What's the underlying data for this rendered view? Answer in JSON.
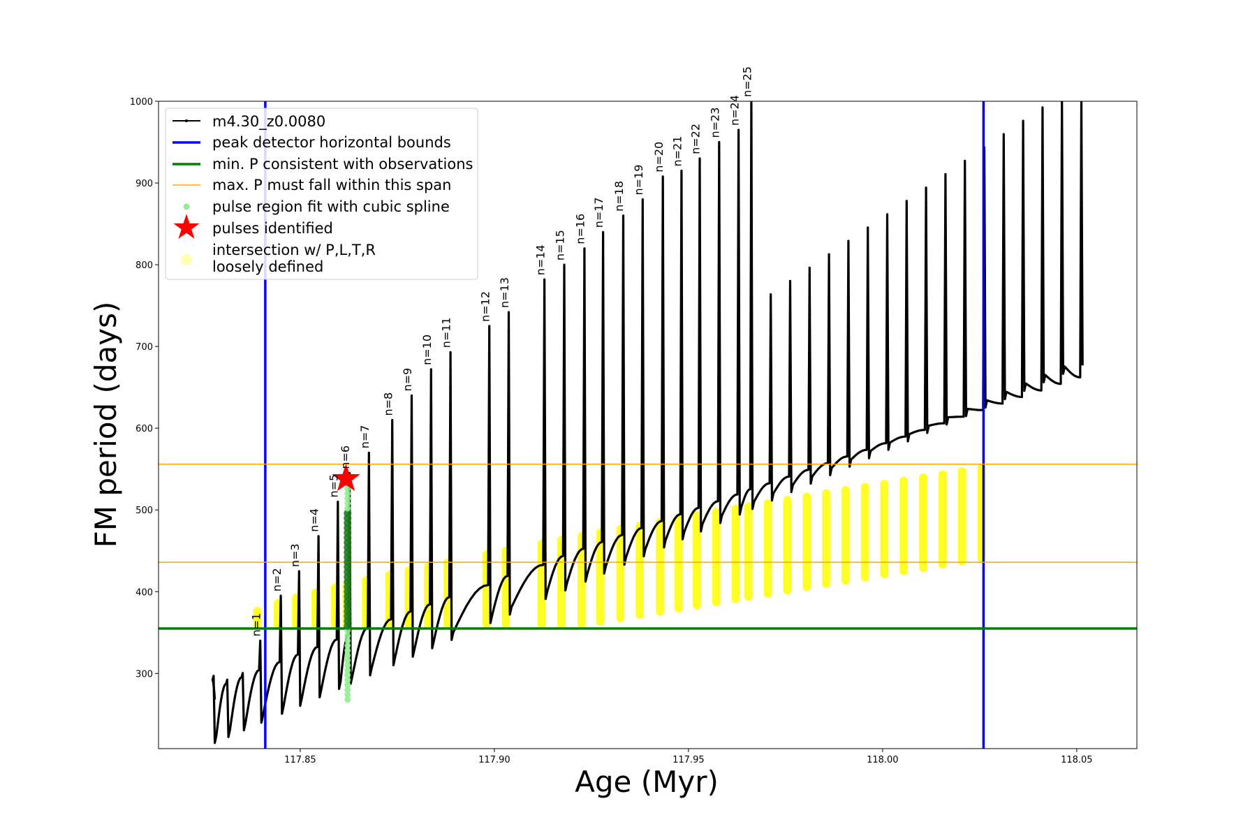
{
  "chart_data": {
    "type": "line",
    "title": "",
    "xlabel": "Age (Myr)",
    "ylabel": "FM period (days)",
    "xlim": [
      117.8135,
      118.0655
    ],
    "ylim": [
      208,
      1000
    ],
    "xticks": [
      117.85,
      117.9,
      117.95,
      118.0,
      118.05
    ],
    "xtick_labels": [
      "117.85",
      "117.90",
      "117.95",
      "118.00",
      "118.05"
    ],
    "yticks": [
      300,
      400,
      500,
      600,
      700,
      800,
      900,
      1000
    ],
    "ytick_labels": [
      "300",
      "400",
      "500",
      "600",
      "700",
      "800",
      "900",
      "1000"
    ],
    "grid": false,
    "legend_position": "top-left",
    "legend": [
      {
        "label": "m4.30_z0.0080",
        "marker": "line-dot",
        "color": "#000000"
      },
      {
        "label": "peak detector horizontal bounds",
        "marker": "line",
        "color": "#0000ff"
      },
      {
        "label": "min. P consistent with observations",
        "marker": "line",
        "color": "#008000"
      },
      {
        "label": "max. P must fall within this span",
        "marker": "thin-line",
        "color": "#ffa500"
      },
      {
        "label": "pulse region fit with cubic spline",
        "marker": "dot",
        "color": "#90ee90"
      },
      {
        "label": "pulses identified",
        "marker": "star",
        "color": "#ff0000"
      },
      {
        "label_lines": [
          "intersection w/ P,L,T,R",
          "loosely defined"
        ],
        "marker": "big-dot",
        "color": "#ffff99"
      }
    ],
    "vertical_lines": {
      "x": [
        117.841,
        118.026
      ],
      "color": "#0000ff"
    },
    "min_period_line": {
      "y": 355,
      "color": "#008000"
    },
    "max_period_span": {
      "y": [
        436,
        556
      ],
      "color": "#ffa500"
    },
    "pulses": {
      "n": [
        1,
        2,
        3,
        4,
        5,
        6,
        7,
        8,
        9,
        10,
        11,
        12,
        13,
        14,
        15,
        16,
        17,
        18,
        19,
        20,
        21,
        22,
        23,
        24,
        25
      ],
      "age": [
        117.84,
        117.8453,
        117.85,
        117.855,
        117.86,
        117.863,
        117.868,
        117.874,
        117.879,
        117.884,
        117.889,
        117.899,
        117.904,
        117.9132,
        117.9183,
        117.9235,
        117.9283,
        117.9335,
        117.9385,
        117.9437,
        117.9485,
        117.9532,
        117.9582,
        117.9632,
        117.9665
      ],
      "peak_period": [
        340,
        395,
        425,
        468,
        510,
        545,
        570,
        610,
        640,
        672,
        693,
        725,
        742,
        782,
        800,
        820,
        840,
        860,
        880,
        908,
        915,
        930,
        950,
        965,
        1000
      ],
      "label_text": [
        "n=1",
        "n=2",
        "n=3",
        "n=4",
        "n=5",
        "n=6",
        "n=7",
        "n=8",
        "n=9",
        "n=10",
        "n=11",
        "n=12",
        "n=13",
        "n=14",
        "n=15",
        "n=16",
        "n=17",
        "n=18",
        "n=19",
        "n=20",
        "n=21",
        "n=22",
        "n=23",
        "n=24",
        "n=25"
      ]
    },
    "pulses_identified": [
      {
        "age": 117.8618,
        "period": 538,
        "color": "#ff0000"
      }
    ],
    "cubic_spline_region": {
      "age": 117.8622,
      "period_range": [
        268,
        535
      ],
      "color": "#90ee90"
    },
    "series": [
      {
        "name": "m4.30_z0.0080",
        "color": "#000000",
        "trend": {
          "age": [
            117.828,
            118.053
          ],
          "period_start": [
            215,
            265
          ],
          "period_end": [
            680,
            1000
          ]
        }
      }
    ],
    "intersection_region": {
      "age_range": [
        117.8395,
        118.0265
      ],
      "period_min": 355,
      "color": "#ffff00"
    }
  }
}
